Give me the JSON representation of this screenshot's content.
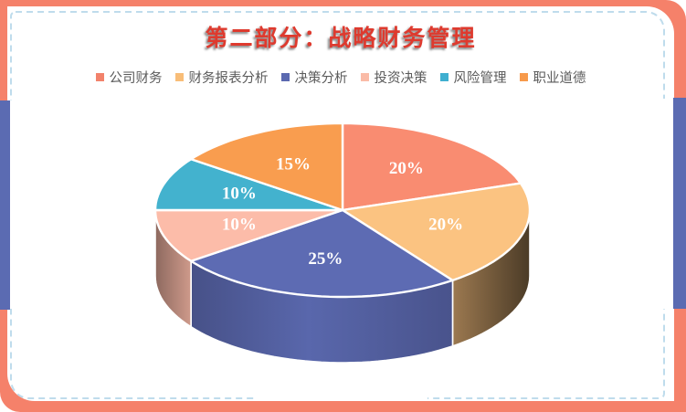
{
  "frame": {
    "border_color": "#F5816A",
    "accent_color": "#5B6BB2",
    "dash_color": "#BFDCEC",
    "card_bg": "#FFFFFF"
  },
  "header": {
    "title": "第二部分：战略财务管理",
    "title_color": "#DE3A2E"
  },
  "legend": {
    "text_color": "#5B5B5B",
    "items": [
      {
        "label": "公司财务",
        "color": "#F2826B"
      },
      {
        "label": "财务报表分析",
        "color": "#F8BD78"
      },
      {
        "label": "决策分析",
        "color": "#5B69B0"
      },
      {
        "label": "投资决策",
        "color": "#FABBA7"
      },
      {
        "label": "风险管理",
        "color": "#3FAFD0"
      },
      {
        "label": "职业道德",
        "color": "#F79A4B"
      }
    ]
  },
  "chart_data": {
    "type": "pie",
    "style": "3d",
    "title": "第二部分：战略财务管理",
    "legend_position": "top",
    "direction": "clockwise",
    "start_angle_deg": 0,
    "label_color": "#FFFFFF",
    "series": [
      {
        "name": "公司财务",
        "value": 20,
        "label": "20%",
        "color": "#F98C71"
      },
      {
        "name": "财务报表分析",
        "value": 20,
        "label": "20%",
        "color": "#FBC381"
      },
      {
        "name": "决策分析",
        "value": 25,
        "label": "25%",
        "color": "#5D6BB3"
      },
      {
        "name": "投资决策",
        "value": 10,
        "label": "10%",
        "color": "#FCBCA9"
      },
      {
        "name": "风险管理",
        "value": 10,
        "label": "10%",
        "color": "#43B2CE"
      },
      {
        "name": "职业道德",
        "value": 15,
        "label": "15%",
        "color": "#F99D4F"
      }
    ]
  }
}
